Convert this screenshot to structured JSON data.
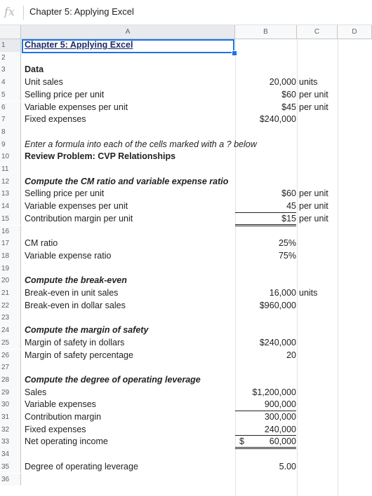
{
  "formula_bar": {
    "fx_label": "fx",
    "content": "Chapter 5: Applying Excel"
  },
  "columns": [
    "A",
    "B",
    "C",
    "D"
  ],
  "rows": [
    {
      "n": "1",
      "a": "Chapter 5: Applying Excel",
      "a_style": "title"
    },
    {
      "n": "2"
    },
    {
      "n": "3",
      "a": "Data",
      "a_style": "bold"
    },
    {
      "n": "4",
      "a": "Unit sales",
      "b": "20,000",
      "c": "units"
    },
    {
      "n": "5",
      "a": "Selling price per unit",
      "b": "$60",
      "c": "per unit"
    },
    {
      "n": "6",
      "a": "Variable expenses per unit",
      "b": "$45",
      "c": "per unit"
    },
    {
      "n": "7",
      "a": "Fixed expenses",
      "b": "$240,000"
    },
    {
      "n": "8"
    },
    {
      "n": "9",
      "a": "Enter a formula into each of the cells marked with a ? below",
      "a_style": "italic"
    },
    {
      "n": "10",
      "a": "Review Problem: CVP Relationships",
      "a_style": "bold"
    },
    {
      "n": "11"
    },
    {
      "n": "12",
      "a": "Compute the CM ratio and variable expense ratio",
      "a_style": "bolditalic"
    },
    {
      "n": "13",
      "a": "Selling price per unit",
      "b": "$60",
      "c": "per unit"
    },
    {
      "n": "14",
      "a": "Variable expenses per unit",
      "b": "45",
      "c": "per unit",
      "b_border": "single"
    },
    {
      "n": "15",
      "a": "Contribution margin per unit",
      "b": "$15",
      "c": "per unit",
      "b_border": "double"
    },
    {
      "n": "16"
    },
    {
      "n": "17",
      "a": "CM ratio",
      "b": "25%"
    },
    {
      "n": "18",
      "a": "Variable expense ratio",
      "b": "75%"
    },
    {
      "n": "19"
    },
    {
      "n": "20",
      "a": "Compute the break-even",
      "a_style": "bolditalic"
    },
    {
      "n": "21",
      "a": "Break-even in unit sales",
      "b": "16,000",
      "c": "units"
    },
    {
      "n": "22",
      "a": "Break-even in dollar sales",
      "b": "$960,000"
    },
    {
      "n": "23"
    },
    {
      "n": "24",
      "a": "Compute the margin of safety",
      "a_style": "bolditalic"
    },
    {
      "n": "25",
      "a": "Margin of safety in dollars",
      "b": "$240,000"
    },
    {
      "n": "26",
      "a": "Margin of safety percentage",
      "b": "20"
    },
    {
      "n": "27"
    },
    {
      "n": "28",
      "a": "Compute the degree of operating leverage",
      "a_style": "bolditalic"
    },
    {
      "n": "29",
      "a": "Sales",
      "b": "$1,200,000"
    },
    {
      "n": "30",
      "a": "Variable expenses",
      "b": "900,000",
      "b_border": "single"
    },
    {
      "n": "31",
      "a": "Contribution margin",
      "b": "300,000"
    },
    {
      "n": "32",
      "a": "Fixed expenses",
      "b": "240,000",
      "b_border": "single"
    },
    {
      "n": "33",
      "a": "Net operating income",
      "b_dollar": "$",
      "b": "60,000",
      "b_border": "double"
    },
    {
      "n": "34"
    },
    {
      "n": "35",
      "a": "Degree of operating leverage",
      "b": "5.00"
    },
    {
      "n": "36"
    }
  ]
}
